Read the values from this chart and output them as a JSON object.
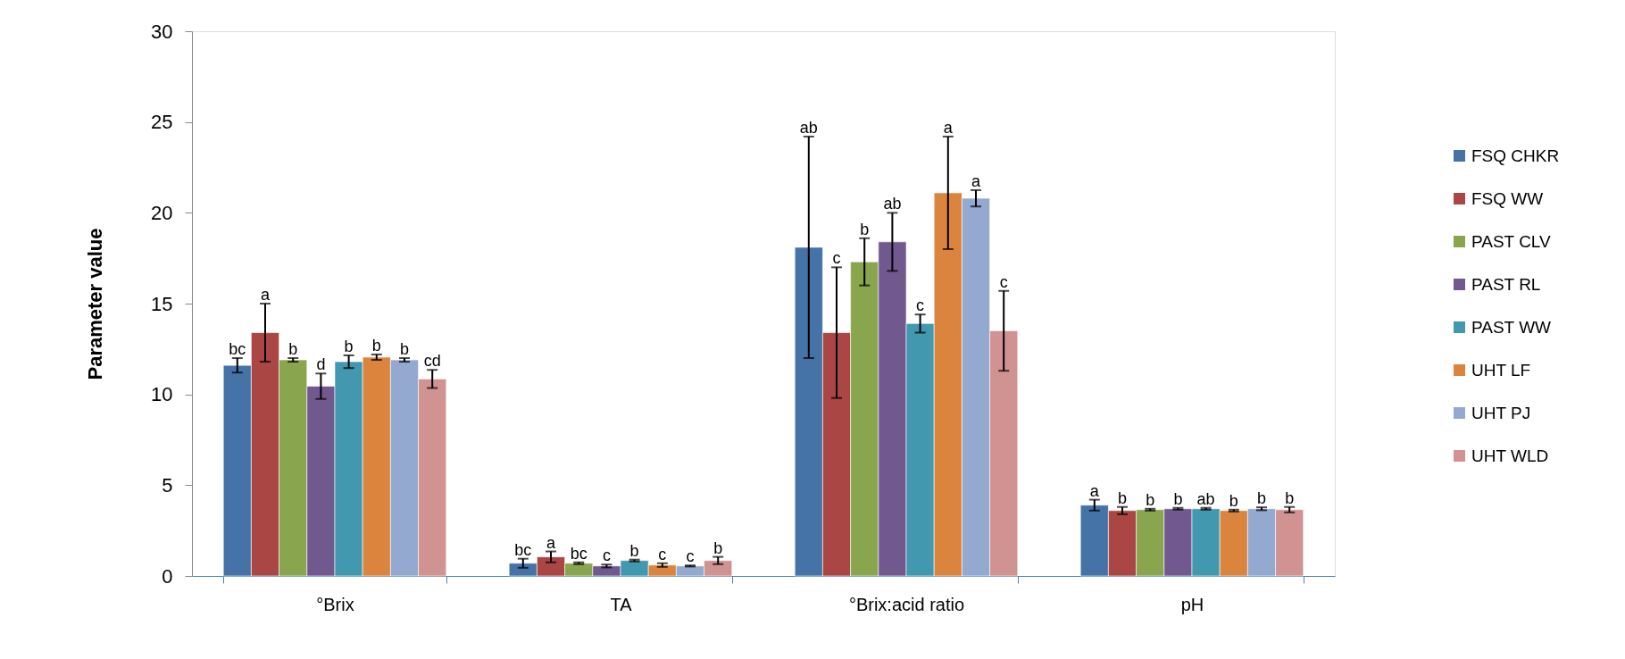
{
  "chart_data": {
    "type": "bar",
    "ylabel": "Parameter value",
    "categories": [
      "°Brix",
      "TA",
      "°Brix:acid ratio",
      "pH"
    ],
    "ylim": [
      0,
      30
    ],
    "yticks": [
      0,
      5,
      10,
      15,
      20,
      25,
      30
    ],
    "grid": false,
    "legend": "right",
    "series": [
      {
        "name": "FSQ CHKR",
        "color": "#4572a7",
        "values": [
          11.6,
          0.7,
          18.1,
          3.9
        ],
        "errors": [
          0.4,
          0.25,
          6.1,
          0.3
        ]
      },
      {
        "name": "FSQ WW",
        "color": "#aa4643",
        "values": [
          13.4,
          1.05,
          13.4,
          3.6
        ],
        "errors": [
          1.6,
          0.3,
          3.6,
          0.2
        ]
      },
      {
        "name": "PAST CLV",
        "color": "#89a54e",
        "values": [
          11.9,
          0.7,
          17.3,
          3.65
        ],
        "errors": [
          0.1,
          0.05,
          1.3,
          0.05
        ]
      },
      {
        "name": "PAST RL",
        "color": "#71588f",
        "values": [
          10.45,
          0.55,
          18.4,
          3.7
        ],
        "errors": [
          0.7,
          0.08,
          1.6,
          0.05
        ]
      },
      {
        "name": "PAST WW",
        "color": "#4198af",
        "values": [
          11.8,
          0.85,
          13.9,
          3.7
        ],
        "errors": [
          0.35,
          0.05,
          0.5,
          0.05
        ]
      },
      {
        "name": "UHT LF",
        "color": "#db843d",
        "values": [
          12.05,
          0.6,
          21.1,
          3.6
        ],
        "errors": [
          0.15,
          0.1,
          3.1,
          0.05
        ]
      },
      {
        "name": "UHT PJ",
        "color": "#93a9cf",
        "values": [
          11.9,
          0.55,
          20.8,
          3.7
        ],
        "errors": [
          0.1,
          0.03,
          0.45,
          0.08
        ]
      },
      {
        "name": "UHT WLD",
        "color": "#d19392",
        "values": [
          10.85,
          0.85,
          13.5,
          3.65
        ],
        "errors": [
          0.5,
          0.2,
          2.2,
          0.15
        ]
      }
    ],
    "annotations": [
      "bc",
      "a",
      "b",
      "d",
      "b",
      "b",
      "b",
      "cd",
      "bc",
      "a",
      "bc",
      "c",
      "b",
      "c",
      "c",
      "b",
      "ab",
      "c",
      "b",
      "ab",
      "c",
      "a",
      "a",
      "c",
      "a",
      "b",
      "b",
      "b",
      "ab",
      "b",
      "b",
      "b"
    ]
  }
}
